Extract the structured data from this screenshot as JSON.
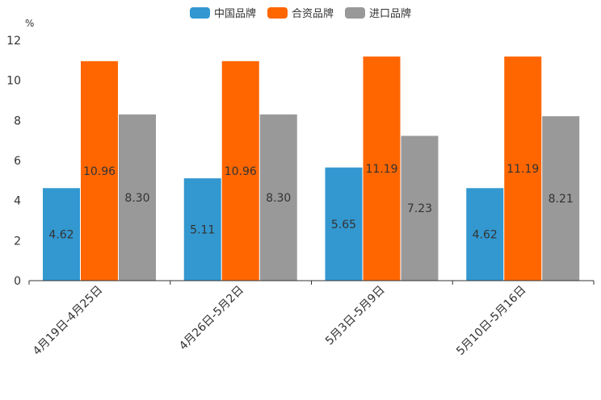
{
  "chart_data": {
    "type": "bar",
    "title": "",
    "ylabel": "%",
    "xlabel": "",
    "ylim": [
      0,
      12
    ],
    "yticks": [
      0,
      2,
      4,
      6,
      8,
      10,
      12
    ],
    "categories": [
      "4月19日-4月25日",
      "4月26日-5月2日",
      "5月3日-5月9日",
      "5月10日-5月16日"
    ],
    "series": [
      {
        "name": "中国品牌",
        "color": "#3398d0",
        "values": [
          4.62,
          5.11,
          5.65,
          4.62
        ],
        "labels": [
          "4.62",
          "5.11",
          "5.65",
          "4.62"
        ]
      },
      {
        "name": "合资品牌",
        "color": "#ff6600",
        "values": [
          10.96,
          10.96,
          11.19,
          11.19
        ],
        "labels": [
          "10.96",
          "10.96",
          "11.19",
          "11.19"
        ]
      },
      {
        "name": "进口品牌",
        "color": "#999999",
        "values": [
          8.3,
          8.3,
          7.23,
          8.21
        ],
        "labels": [
          "8.30",
          "8.30",
          "7.23",
          "8.21"
        ]
      }
    ],
    "legend_position": "top-center",
    "grid": false
  }
}
